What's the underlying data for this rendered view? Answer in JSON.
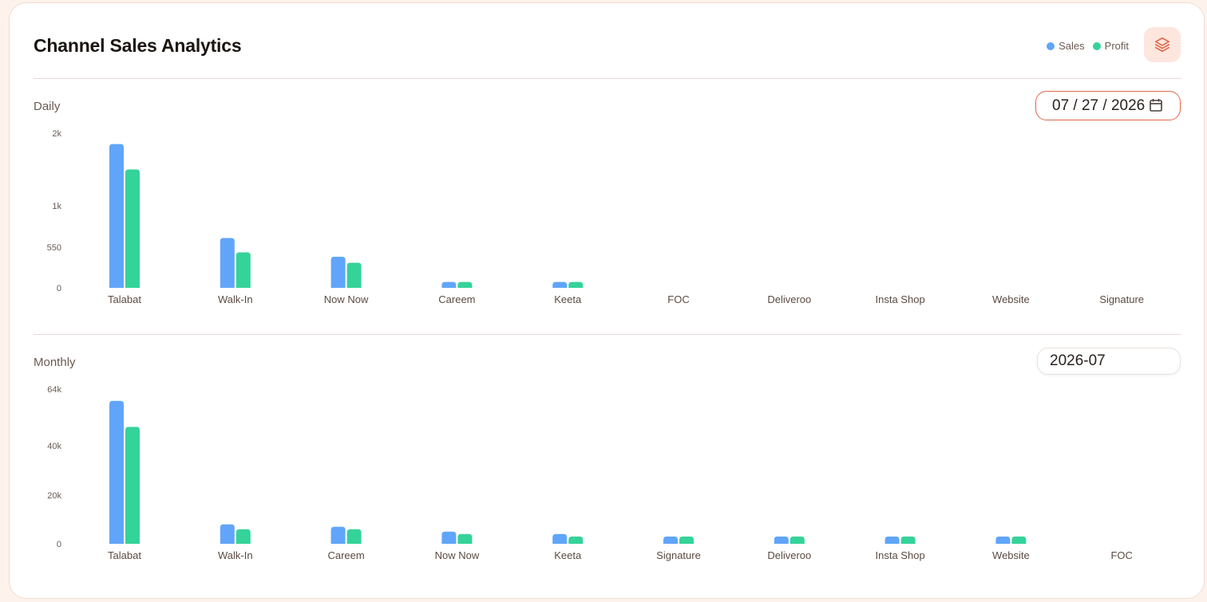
{
  "header": {
    "title": "Channel Sales Analytics",
    "legend": [
      {
        "label": "Sales",
        "color": "#60a5fa"
      },
      {
        "label": "Profit",
        "color": "#34d399"
      }
    ],
    "layers_icon": "layers-icon"
  },
  "daily": {
    "label": "Daily",
    "date_value": "07 / 27 / 2026",
    "calendar_icon": "calendar-icon"
  },
  "monthly": {
    "label": "Monthly",
    "month_value": "2026-07"
  },
  "chart_data": [
    {
      "type": "bar",
      "title": "Daily",
      "categories": [
        "Talabat",
        "Walk-In",
        "Now Now",
        "Careem",
        "Keeta",
        "FOC",
        "Deliveroo",
        "Insta Shop",
        "Website",
        "Signature"
      ],
      "series": [
        {
          "name": "Sales",
          "color": "#60a5fa",
          "values": [
            1850,
            650,
            420,
            80,
            80,
            0,
            0,
            0,
            0,
            0
          ]
        },
        {
          "name": "Profit",
          "color": "#34d399",
          "values": [
            1500,
            480,
            340,
            80,
            80,
            0,
            0,
            0,
            0,
            0
          ]
        }
      ],
      "yticks": [
        0,
        550,
        1000,
        2000
      ],
      "ytick_labels": [
        "0",
        "550",
        "1k",
        "2k"
      ]
    },
    {
      "type": "bar",
      "title": "Monthly",
      "categories": [
        "Talabat",
        "Walk-In",
        "Careem",
        "Now Now",
        "Keeta",
        "Signature",
        "Deliveroo",
        "Insta Shop",
        "Website",
        "FOC"
      ],
      "series": [
        {
          "name": "Sales",
          "color": "#60a5fa",
          "values": [
            59000,
            8000,
            7000,
            5000,
            4000,
            3000,
            3000,
            3000,
            3000,
            0
          ]
        },
        {
          "name": "Profit",
          "color": "#34d399",
          "values": [
            48000,
            6000,
            6000,
            4000,
            3000,
            3000,
            3000,
            3000,
            3000,
            0
          ]
        }
      ],
      "yticks": [
        0,
        20000,
        40000,
        64000
      ],
      "ytick_labels": [
        "0",
        "20k",
        "40k",
        "64k"
      ]
    }
  ]
}
